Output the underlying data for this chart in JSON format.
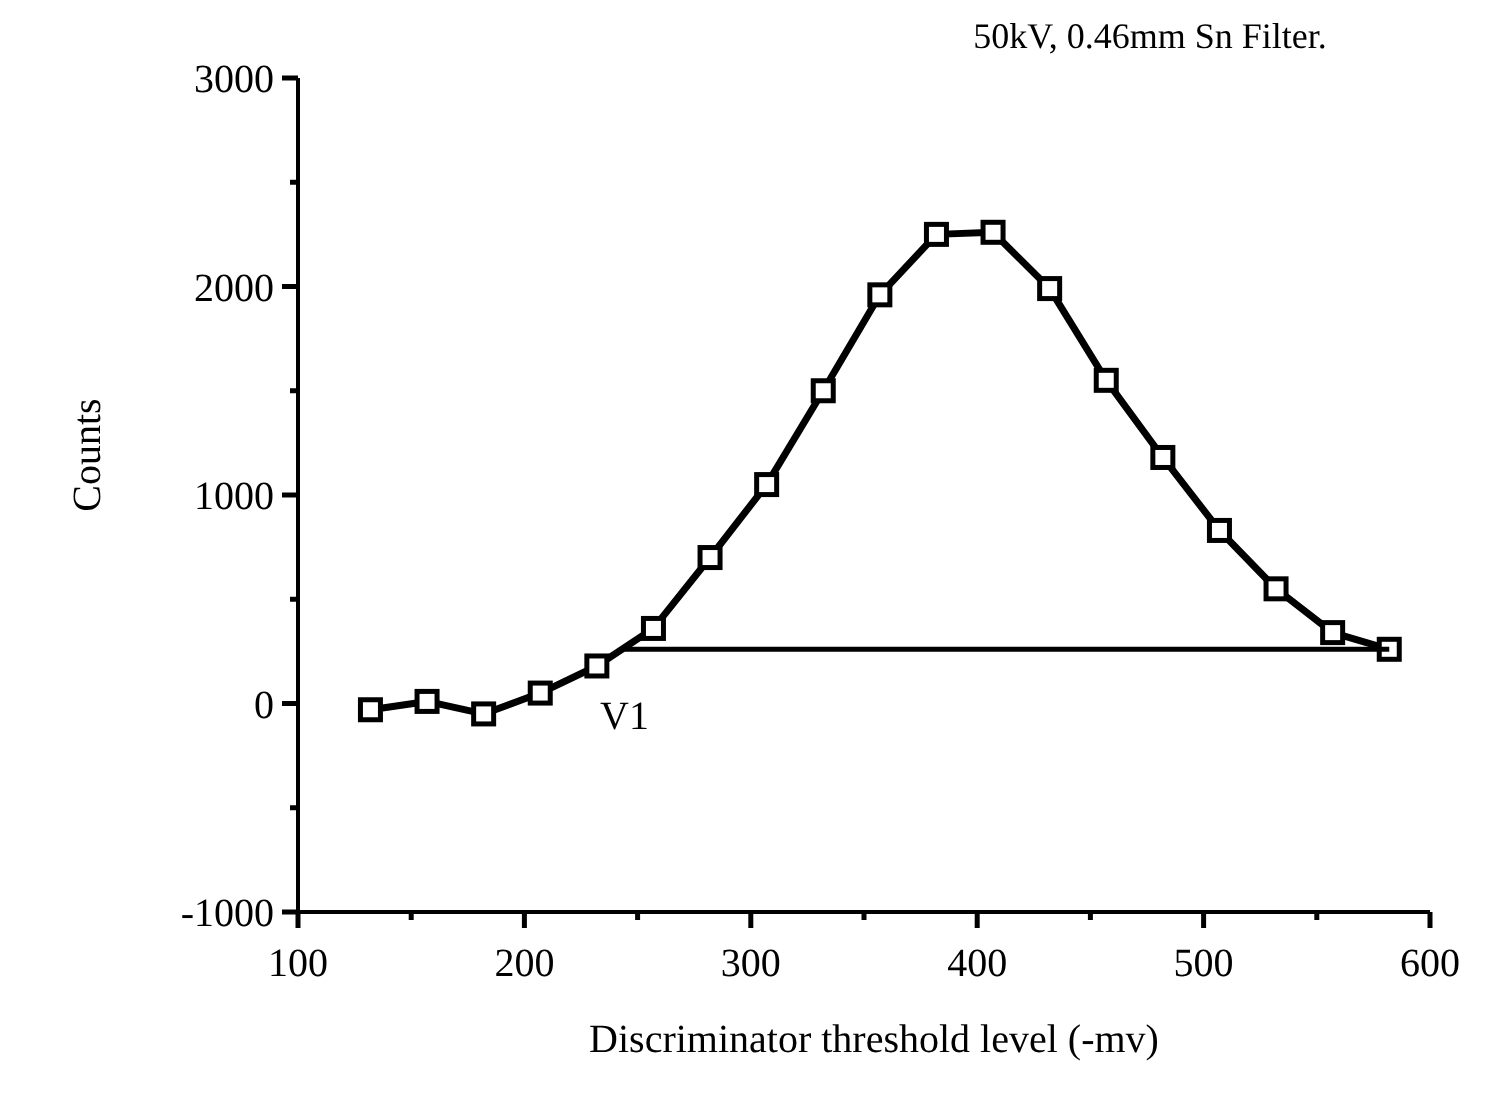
{
  "chart_data": {
    "type": "line",
    "title": "50kV, 0.46mm Sn Filter.",
    "xlabel": "Discriminator threshold level (-mv)",
    "ylabel": "Counts",
    "series": [
      {
        "color": "#000000",
        "marker": "square",
        "x": [
          132,
          157,
          182,
          207,
          232,
          257,
          282,
          307,
          332,
          357,
          382,
          407,
          432,
          457,
          482,
          507,
          532,
          557,
          582
        ],
        "values": [
          -30,
          10,
          -50,
          50,
          180,
          360,
          700,
          1050,
          1500,
          1960,
          2250,
          2260,
          1990,
          1550,
          1180,
          830,
          550,
          340,
          260
        ]
      },
      {
        "color": "#000000",
        "marker": "none",
        "x": [
          244,
          582
        ],
        "values": [
          260,
          260
        ]
      }
    ],
    "annotations": [
      {
        "text": "V1",
        "x": 244,
        "y": 260
      }
    ],
    "xlim": [
      100,
      600
    ],
    "xticks": [
      100,
      {
        "value": 150,
        "label": null
      },
      200,
      {
        "value": 250,
        "label": null
      },
      300,
      {
        "value": 350,
        "label": null
      },
      400,
      {
        "value": 450,
        "label": null
      },
      500,
      {
        "value": 550,
        "label": null
      },
      600
    ],
    "ylim": [
      -1000,
      3000
    ],
    "yticks": [
      -1000,
      {
        "value": -500,
        "label": null
      },
      0,
      {
        "value": 500,
        "label": null
      },
      1000,
      {
        "value": 1500,
        "label": null
      },
      2000,
      {
        "value": 2500,
        "label": null
      },
      3000
    ],
    "grid": false
  }
}
